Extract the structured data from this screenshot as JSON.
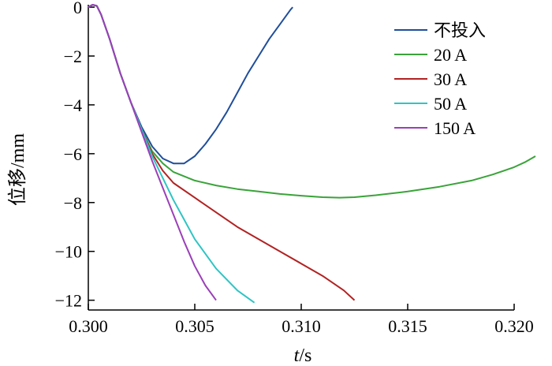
{
  "chart_data": {
    "type": "line",
    "xlabel_italic": "t",
    "xlabel_unit": "/s",
    "ylabel": "位移/mm",
    "xlim": [
      0.3,
      0.32
    ],
    "ylim": [
      -12.4,
      0.1
    ],
    "x_ticks": [
      0.3,
      0.305,
      0.31,
      0.315,
      0.32
    ],
    "x_tick_labels": [
      "0.300",
      "0.305",
      "0.310",
      "0.315",
      "0.320"
    ],
    "y_ticks": [
      0,
      -2,
      -4,
      -6,
      -8,
      -10,
      -12
    ],
    "y_tick_labels": [
      "0",
      "−2",
      "−4",
      "−6",
      "−8",
      "−10",
      "−12"
    ],
    "grid": false,
    "legend_position": "top-right",
    "series": [
      {
        "name": "不投入",
        "color": "#1f4e9a",
        "points": [
          [
            0.3,
            0.0
          ],
          [
            0.3002,
            0.1
          ],
          [
            0.3004,
            0.05
          ],
          [
            0.3006,
            -0.3
          ],
          [
            0.301,
            -1.3
          ],
          [
            0.3015,
            -2.7
          ],
          [
            0.302,
            -3.9
          ],
          [
            0.3025,
            -4.9
          ],
          [
            0.303,
            -5.7
          ],
          [
            0.3035,
            -6.2
          ],
          [
            0.304,
            -6.4
          ],
          [
            0.3045,
            -6.4
          ],
          [
            0.305,
            -6.1
          ],
          [
            0.3055,
            -5.6
          ],
          [
            0.306,
            -5.0
          ],
          [
            0.3065,
            -4.3
          ],
          [
            0.307,
            -3.5
          ],
          [
            0.3075,
            -2.7
          ],
          [
            0.308,
            -2.0
          ],
          [
            0.3085,
            -1.3
          ],
          [
            0.309,
            -0.7
          ],
          [
            0.3095,
            -0.1
          ],
          [
            0.3096,
            0.0
          ]
        ]
      },
      {
        "name": "20 A",
        "color": "#3aa33a",
        "points": [
          [
            0.3,
            0.0
          ],
          [
            0.3002,
            0.1
          ],
          [
            0.3004,
            0.05
          ],
          [
            0.3006,
            -0.3
          ],
          [
            0.301,
            -1.3
          ],
          [
            0.3015,
            -2.7
          ],
          [
            0.302,
            -3.9
          ],
          [
            0.3025,
            -5.0
          ],
          [
            0.303,
            -5.9
          ],
          [
            0.3035,
            -6.4
          ],
          [
            0.304,
            -6.75
          ],
          [
            0.305,
            -7.1
          ],
          [
            0.306,
            -7.3
          ],
          [
            0.307,
            -7.45
          ],
          [
            0.308,
            -7.55
          ],
          [
            0.309,
            -7.65
          ],
          [
            0.31,
            -7.72
          ],
          [
            0.311,
            -7.78
          ],
          [
            0.3118,
            -7.8
          ],
          [
            0.3125,
            -7.78
          ],
          [
            0.3135,
            -7.7
          ],
          [
            0.315,
            -7.55
          ],
          [
            0.3165,
            -7.35
          ],
          [
            0.318,
            -7.1
          ],
          [
            0.319,
            -6.85
          ],
          [
            0.32,
            -6.55
          ],
          [
            0.3205,
            -6.35
          ],
          [
            0.321,
            -6.1
          ]
        ]
      },
      {
        "name": "30 A",
        "color": "#b22222",
        "points": [
          [
            0.3,
            0.0
          ],
          [
            0.3002,
            0.1
          ],
          [
            0.3004,
            0.05
          ],
          [
            0.3006,
            -0.3
          ],
          [
            0.301,
            -1.3
          ],
          [
            0.3015,
            -2.7
          ],
          [
            0.302,
            -3.9
          ],
          [
            0.3025,
            -5.0
          ],
          [
            0.303,
            -6.0
          ],
          [
            0.3035,
            -6.7
          ],
          [
            0.304,
            -7.2
          ],
          [
            0.305,
            -7.8
          ],
          [
            0.306,
            -8.4
          ],
          [
            0.307,
            -9.0
          ],
          [
            0.308,
            -9.5
          ],
          [
            0.309,
            -10.0
          ],
          [
            0.31,
            -10.5
          ],
          [
            0.311,
            -11.0
          ],
          [
            0.312,
            -11.6
          ],
          [
            0.3125,
            -12.0
          ]
        ]
      },
      {
        "name": "50 A",
        "color": "#2ec4c4",
        "points": [
          [
            0.3,
            0.0
          ],
          [
            0.3002,
            0.1
          ],
          [
            0.3004,
            0.05
          ],
          [
            0.3006,
            -0.3
          ],
          [
            0.301,
            -1.3
          ],
          [
            0.3015,
            -2.7
          ],
          [
            0.302,
            -3.9
          ],
          [
            0.3025,
            -5.0
          ],
          [
            0.303,
            -6.1
          ],
          [
            0.3035,
            -7.0
          ],
          [
            0.304,
            -7.9
          ],
          [
            0.3045,
            -8.7
          ],
          [
            0.305,
            -9.5
          ],
          [
            0.306,
            -10.7
          ],
          [
            0.307,
            -11.6
          ],
          [
            0.3078,
            -12.1
          ]
        ]
      },
      {
        "name": "150 A",
        "color": "#9b40b8",
        "points": [
          [
            0.3,
            0.0
          ],
          [
            0.3002,
            0.1
          ],
          [
            0.3004,
            0.05
          ],
          [
            0.3006,
            -0.3
          ],
          [
            0.301,
            -1.3
          ],
          [
            0.3015,
            -2.7
          ],
          [
            0.302,
            -3.9
          ],
          [
            0.3025,
            -5.1
          ],
          [
            0.303,
            -6.3
          ],
          [
            0.3035,
            -7.4
          ],
          [
            0.304,
            -8.5
          ],
          [
            0.3045,
            -9.6
          ],
          [
            0.305,
            -10.6
          ],
          [
            0.3055,
            -11.4
          ],
          [
            0.306,
            -12.0
          ]
        ]
      }
    ]
  }
}
